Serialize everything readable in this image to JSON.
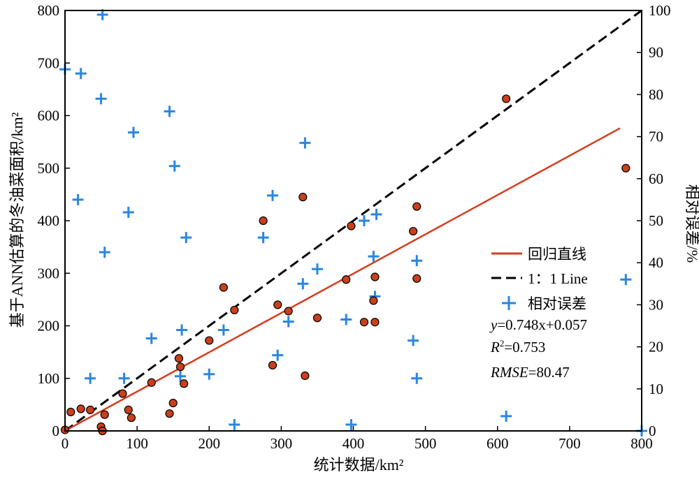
{
  "chart_data": {
    "type": "scatter",
    "xlabel": "统计数据/km²",
    "ylabel": "基于ANN估算的冬油菜面积/km²",
    "y2label": "相对误差/%",
    "xlim": [
      0,
      800
    ],
    "ylim": [
      0,
      800
    ],
    "y2lim": [
      0,
      100
    ],
    "xticks": [
      "0",
      "100",
      "200",
      "300",
      "400",
      "500",
      "600",
      "700",
      "800"
    ],
    "yticks": [
      "0",
      "100",
      "200",
      "300",
      "400",
      "500",
      "600",
      "700",
      "800"
    ],
    "y2ticks": [
      "0",
      "10",
      "20",
      "30",
      "40",
      "50",
      "60",
      "70",
      "80",
      "90",
      "100"
    ],
    "grid": false,
    "legend_position": "right-center",
    "colors": {
      "regression": "#d63c1e",
      "one_to_one": "#000000",
      "relative_error": "#2a86e0",
      "points_fill": "#c8401c",
      "points_stroke": "#000000"
    },
    "series": [
      {
        "name": "回归直线",
        "kind": "line",
        "x": [
          0,
          770
        ],
        "y": [
          0.057,
          576.0
        ]
      },
      {
        "name": "1：1 Line",
        "kind": "dashed-line",
        "x": [
          0,
          800
        ],
        "y": [
          0,
          800
        ]
      },
      {
        "name": "相对误差",
        "kind": "plus-markers",
        "axis": "right",
        "points": [
          [
            0,
            86
          ],
          [
            22,
            85
          ],
          [
            52,
            99
          ],
          [
            50,
            79
          ],
          [
            18,
            55
          ],
          [
            55,
            42.5
          ],
          [
            35,
            12.5
          ],
          [
            82,
            12.5
          ],
          [
            95,
            71
          ],
          [
            88,
            52
          ],
          [
            120,
            22
          ],
          [
            145,
            76
          ],
          [
            152,
            63
          ],
          [
            160,
            13
          ],
          [
            162,
            24
          ],
          [
            168,
            46
          ],
          [
            200,
            13.5
          ],
          [
            220,
            24
          ],
          [
            235,
            1.5
          ],
          [
            275,
            46
          ],
          [
            288,
            56
          ],
          [
            295,
            18
          ],
          [
            310,
            26
          ],
          [
            330,
            35
          ],
          [
            333,
            68.5
          ],
          [
            350,
            38.5
          ],
          [
            390,
            26.5
          ],
          [
            397,
            1.5
          ],
          [
            415,
            50
          ],
          [
            428,
            41.5
          ],
          [
            430,
            32
          ],
          [
            432,
            51.5
          ],
          [
            483,
            21.5
          ],
          [
            488,
            12.5
          ],
          [
            488,
            40.5
          ],
          [
            612,
            3.5
          ],
          [
            778,
            36
          ],
          [
            800,
            0
          ]
        ]
      },
      {
        "name": "",
        "kind": "circle-markers",
        "points": [
          [
            0,
            2
          ],
          [
            8,
            36
          ],
          [
            22,
            42
          ],
          [
            35,
            40
          ],
          [
            50,
            8
          ],
          [
            52,
            0
          ],
          [
            55,
            31
          ],
          [
            80,
            71
          ],
          [
            88,
            40
          ],
          [
            92,
            25
          ],
          [
            120,
            92
          ],
          [
            145,
            33
          ],
          [
            150,
            53
          ],
          [
            158,
            138
          ],
          [
            160,
            122
          ],
          [
            165,
            90
          ],
          [
            200,
            172
          ],
          [
            220,
            273
          ],
          [
            235,
            230
          ],
          [
            275,
            400
          ],
          [
            288,
            125
          ],
          [
            295,
            240
          ],
          [
            310,
            228
          ],
          [
            330,
            445
          ],
          [
            333,
            105
          ],
          [
            350,
            215
          ],
          [
            390,
            288
          ],
          [
            397,
            390
          ],
          [
            415,
            207
          ],
          [
            428,
            248
          ],
          [
            430,
            293
          ],
          [
            430,
            207
          ],
          [
            483,
            380
          ],
          [
            488,
            427
          ],
          [
            488,
            290
          ],
          [
            612,
            632
          ],
          [
            778,
            500
          ]
        ]
      }
    ],
    "annotations": [
      "y=0.748x+0.057",
      "R2=0.753",
      "RMSE=80.47"
    ]
  }
}
